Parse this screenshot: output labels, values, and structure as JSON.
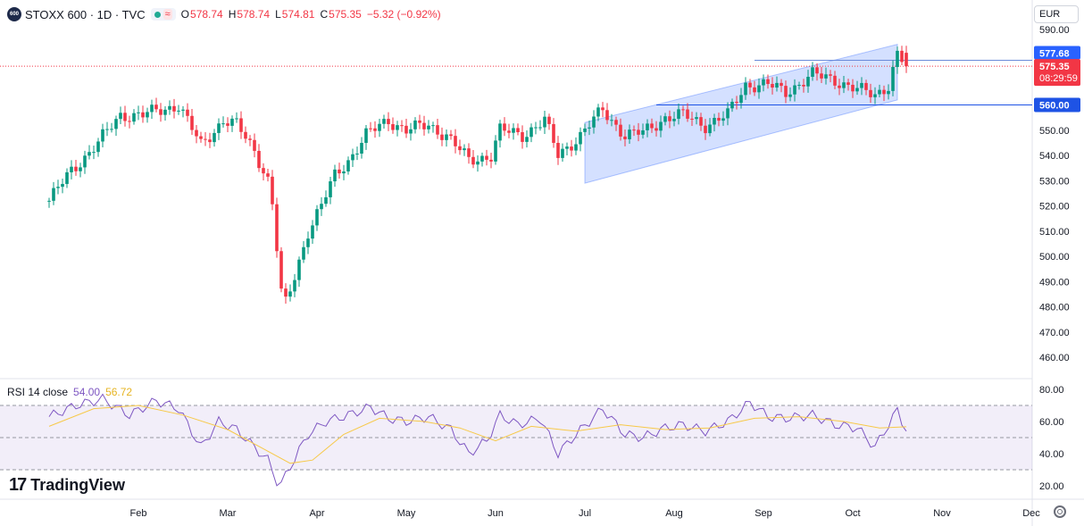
{
  "header": {
    "logo_text": "600",
    "symbol_line": "STOXX 600 · 1D · TVC",
    "open_label": "O",
    "open": "578.74",
    "high_label": "H",
    "high": "578.74",
    "low_label": "L",
    "low": "574.81",
    "close_label": "C",
    "close": "575.35",
    "change": "−5.32 (−0.92%)"
  },
  "currency": "EUR",
  "rsi_legend": {
    "name": "RSI 14 close",
    "rsi": "54.00",
    "ma": "56.72"
  },
  "brand": "TradingView",
  "price_labels": {
    "level_upper": "577.68",
    "last_price": "575.35",
    "countdown": "08:29:59",
    "level_lower": "560.00"
  },
  "colors": {
    "up": "#089981",
    "down": "#f23645",
    "channel": "#2962ff",
    "rsi": "#7e57c2",
    "rsi_ma": "#f7c948",
    "level": "#1e53e5"
  },
  "chart_data": {
    "type": "candlestick",
    "price_axis": {
      "ticks": [
        460,
        470,
        480,
        490,
        500,
        510,
        520,
        530,
        540,
        550,
        560,
        570,
        580,
        590
      ],
      "tick_labels": [
        "460.00",
        "470.00",
        "480.00",
        "490.00",
        "500.00",
        "510.00",
        "520.00",
        "530.00",
        "540.00",
        "550.00",
        "560.00",
        "",
        "",
        "590.00"
      ]
    },
    "time_axis": {
      "labels": [
        "Feb",
        "Mar",
        "Apr",
        "May",
        "Jun",
        "Jul",
        "Aug",
        "Sep",
        "Oct",
        "Nov",
        "Dec"
      ]
    },
    "price_path": [
      {
        "month": 1.0,
        "price": 522
      },
      {
        "month": 1.25,
        "price": 534
      },
      {
        "month": 1.55,
        "price": 545
      },
      {
        "month": 1.8,
        "price": 556
      },
      {
        "month": 2.05,
        "price": 556
      },
      {
        "month": 2.25,
        "price": 558
      },
      {
        "month": 2.45,
        "price": 560
      },
      {
        "month": 2.7,
        "price": 544
      },
      {
        "month": 2.95,
        "price": 554
      },
      {
        "month": 3.1,
        "price": 552
      },
      {
        "month": 3.3,
        "price": 542
      },
      {
        "month": 3.48,
        "price": 528
      },
      {
        "month": 3.62,
        "price": 478
      },
      {
        "month": 3.75,
        "price": 492
      },
      {
        "month": 3.9,
        "price": 510
      },
      {
        "month": 4.05,
        "price": 520
      },
      {
        "month": 4.2,
        "price": 532
      },
      {
        "month": 4.35,
        "price": 538
      },
      {
        "month": 4.55,
        "price": 548
      },
      {
        "month": 4.8,
        "price": 554
      },
      {
        "month": 5.0,
        "price": 550
      },
      {
        "month": 5.25,
        "price": 552
      },
      {
        "month": 5.45,
        "price": 548
      },
      {
        "month": 5.7,
        "price": 538
      },
      {
        "month": 5.95,
        "price": 540
      },
      {
        "month": 6.05,
        "price": 550
      },
      {
        "month": 6.3,
        "price": 548
      },
      {
        "month": 6.55,
        "price": 554
      },
      {
        "month": 6.7,
        "price": 540
      },
      {
        "month": 6.95,
        "price": 548
      },
      {
        "month": 7.2,
        "price": 558
      },
      {
        "month": 7.45,
        "price": 548
      },
      {
        "month": 7.65,
        "price": 549
      },
      {
        "month": 7.9,
        "price": 555
      },
      {
        "month": 8.1,
        "price": 556
      },
      {
        "month": 8.35,
        "price": 552
      },
      {
        "month": 8.6,
        "price": 556
      },
      {
        "month": 8.8,
        "price": 568
      },
      {
        "month": 9.05,
        "price": 568
      },
      {
        "month": 9.25,
        "price": 565
      },
      {
        "month": 9.55,
        "price": 572
      },
      {
        "month": 9.8,
        "price": 570
      },
      {
        "month": 10.05,
        "price": 566
      },
      {
        "month": 10.25,
        "price": 564
      },
      {
        "month": 10.4,
        "price": 568
      },
      {
        "month": 10.5,
        "price": 580
      },
      {
        "month": 10.6,
        "price": 575.35
      }
    ],
    "channel": {
      "upper": [
        {
          "month": 7.0,
          "price": 553
        },
        {
          "month": 10.5,
          "price": 584
        }
      ],
      "lower": [
        {
          "month": 7.0,
          "price": 529
        },
        {
          "month": 10.5,
          "price": 562
        }
      ]
    },
    "horizontal_levels": [
      {
        "from_month": 8.9,
        "price": 577.68
      },
      {
        "from_month": 7.8,
        "price": 560.0
      }
    ],
    "last_price_line": 575.35,
    "rsi_axis": {
      "ticks": [
        20,
        40,
        60,
        80
      ],
      "tick_labels": [
        "20.00",
        "40.00",
        "60.00",
        "80.00"
      ],
      "upper_band": 70,
      "middle": 50,
      "lower_band": 30
    },
    "rsi_path": [
      {
        "month": 1.0,
        "rsi": 63
      },
      {
        "month": 1.3,
        "rsi": 70
      },
      {
        "month": 1.6,
        "rsi": 74
      },
      {
        "month": 1.9,
        "rsi": 64
      },
      {
        "month": 2.2,
        "rsi": 73
      },
      {
        "month": 2.45,
        "rsi": 68
      },
      {
        "month": 2.7,
        "rsi": 44
      },
      {
        "month": 2.9,
        "rsi": 60
      },
      {
        "month": 3.1,
        "rsi": 55
      },
      {
        "month": 3.3,
        "rsi": 44
      },
      {
        "month": 3.45,
        "rsi": 36
      },
      {
        "month": 3.58,
        "rsi": 19
      },
      {
        "month": 3.72,
        "rsi": 34
      },
      {
        "month": 3.9,
        "rsi": 52
      },
      {
        "month": 4.1,
        "rsi": 60
      },
      {
        "month": 4.35,
        "rsi": 64
      },
      {
        "month": 4.6,
        "rsi": 69
      },
      {
        "month": 4.8,
        "rsi": 62
      },
      {
        "month": 5.0,
        "rsi": 60
      },
      {
        "month": 5.25,
        "rsi": 63
      },
      {
        "month": 5.5,
        "rsi": 55
      },
      {
        "month": 5.7,
        "rsi": 40
      },
      {
        "month": 5.9,
        "rsi": 48
      },
      {
        "month": 6.05,
        "rsi": 64
      },
      {
        "month": 6.25,
        "rsi": 58
      },
      {
        "month": 6.5,
        "rsi": 62
      },
      {
        "month": 6.7,
        "rsi": 40
      },
      {
        "month": 6.9,
        "rsi": 52
      },
      {
        "month": 7.2,
        "rsi": 68
      },
      {
        "month": 7.45,
        "rsi": 52
      },
      {
        "month": 7.65,
        "rsi": 50
      },
      {
        "month": 7.9,
        "rsi": 56
      },
      {
        "month": 8.1,
        "rsi": 58
      },
      {
        "month": 8.35,
        "rsi": 54
      },
      {
        "month": 8.6,
        "rsi": 60
      },
      {
        "month": 8.85,
        "rsi": 72
      },
      {
        "month": 9.05,
        "rsi": 63
      },
      {
        "month": 9.25,
        "rsi": 62
      },
      {
        "month": 9.55,
        "rsi": 64
      },
      {
        "month": 9.8,
        "rsi": 58
      },
      {
        "month": 10.05,
        "rsi": 56
      },
      {
        "month": 10.25,
        "rsi": 44
      },
      {
        "month": 10.4,
        "rsi": 58
      },
      {
        "month": 10.5,
        "rsi": 67
      },
      {
        "month": 10.6,
        "rsi": 54
      }
    ],
    "rsi_ma_path": [
      {
        "month": 1.0,
        "rsi": 57
      },
      {
        "month": 1.5,
        "rsi": 68
      },
      {
        "month": 2.0,
        "rsi": 70
      },
      {
        "month": 2.5,
        "rsi": 64
      },
      {
        "month": 3.0,
        "rsi": 55
      },
      {
        "month": 3.4,
        "rsi": 43
      },
      {
        "month": 3.7,
        "rsi": 34
      },
      {
        "month": 3.95,
        "rsi": 36
      },
      {
        "month": 4.3,
        "rsi": 52
      },
      {
        "month": 4.7,
        "rsi": 62
      },
      {
        "month": 5.2,
        "rsi": 60
      },
      {
        "month": 5.6,
        "rsi": 56
      },
      {
        "month": 6.0,
        "rsi": 48
      },
      {
        "month": 6.4,
        "rsi": 57
      },
      {
        "month": 6.9,
        "rsi": 54
      },
      {
        "month": 7.4,
        "rsi": 58
      },
      {
        "month": 7.9,
        "rsi": 55
      },
      {
        "month": 8.4,
        "rsi": 56
      },
      {
        "month": 8.9,
        "rsi": 62
      },
      {
        "month": 9.4,
        "rsi": 63
      },
      {
        "month": 9.9,
        "rsi": 60
      },
      {
        "month": 10.3,
        "rsi": 56
      },
      {
        "month": 10.6,
        "rsi": 56.72
      }
    ]
  }
}
